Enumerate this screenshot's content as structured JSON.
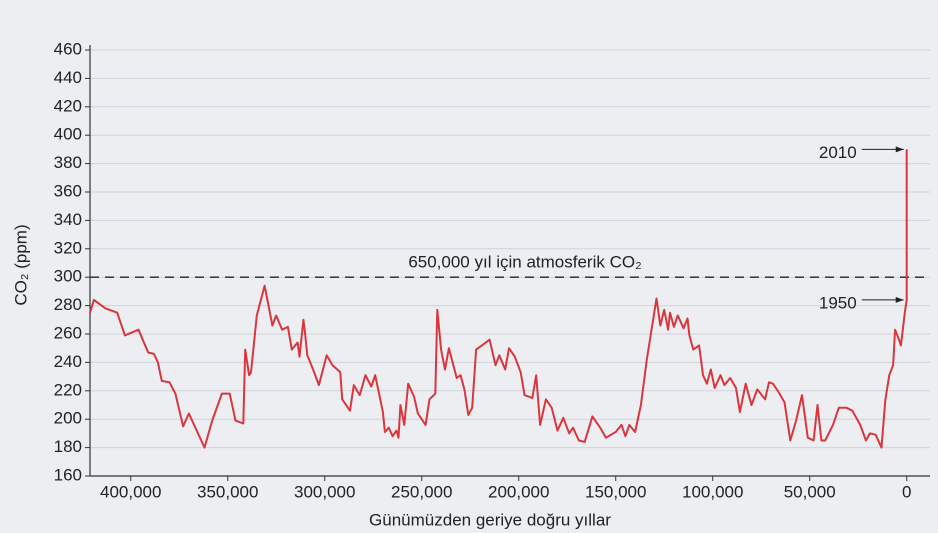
{
  "chart_data": {
    "type": "line",
    "y_label": "CO₂ (ppm)",
    "x_label": "Günümüzden geriye doğru yıllar",
    "xlim": [
      421000,
      -12000
    ],
    "ylim": [
      160,
      460
    ],
    "xticks": [
      {
        "value": 400000,
        "label": "400,000"
      },
      {
        "value": 350000,
        "label": "350,000"
      },
      {
        "value": 300000,
        "label": "300,000"
      },
      {
        "value": 250000,
        "label": "250,000"
      },
      {
        "value": 200000,
        "label": "200,000"
      },
      {
        "value": 150000,
        "label": "150,000"
      },
      {
        "value": 100000,
        "label": "100,000"
      },
      {
        "value": 50000,
        "label": "50,000"
      },
      0
    ],
    "yticks": [
      160,
      180,
      200,
      220,
      240,
      260,
      280,
      300,
      320,
      340,
      360,
      380,
      400,
      420,
      440,
      460
    ],
    "grid": true,
    "reference_line": {
      "y": 300,
      "label": "650,000 yıl için atmosferik CO₂"
    },
    "annotations": [
      {
        "text": "2010",
        "x": 0,
        "y": 390
      },
      {
        "text": "1950",
        "x": 0,
        "y": 284
      }
    ],
    "x": [
      421000,
      419000,
      413000,
      407000,
      403000,
      396000,
      391000,
      388000,
      386000,
      384000,
      380000,
      377000,
      373000,
      370000,
      366000,
      362000,
      358000,
      353000,
      349000,
      346000,
      342000,
      341000,
      339000,
      338000,
      335000,
      331000,
      327000,
      325000,
      322000,
      319000,
      317000,
      314000,
      313000,
      311000,
      310000,
      309000,
      306000,
      303000,
      299000,
      296000,
      292000,
      291000,
      287000,
      285000,
      282000,
      279000,
      276000,
      274000,
      270000,
      269000,
      267000,
      265000,
      263000,
      262000,
      261000,
      259000,
      257000,
      254000,
      252000,
      248000,
      246000,
      243000,
      242000,
      240000,
      238000,
      236000,
      232000,
      230000,
      228000,
      226000,
      224000,
      222000,
      219000,
      215000,
      212000,
      210000,
      207000,
      205000,
      202000,
      199000,
      197000,
      193000,
      191000,
      189000,
      186000,
      183000,
      180000,
      177000,
      174000,
      172000,
      169000,
      166000,
      162000,
      158000,
      155000,
      150000,
      147000,
      145000,
      143000,
      140000,
      137000,
      134000,
      129000,
      127000,
      125000,
      123000,
      122000,
      120000,
      118000,
      115000,
      113000,
      112000,
      110000,
      107000,
      105000,
      103000,
      101000,
      99000,
      96000,
      94000,
      91000,
      88000,
      86000,
      83000,
      80000,
      77000,
      73000,
      71000,
      69000,
      66000,
      63000,
      60000,
      57000,
      54000,
      51000,
      48000,
      46000,
      44000,
      42000,
      38000,
      35000,
      31000,
      28000,
      24000,
      21000,
      19000,
      16000,
      13000,
      11000,
      9000,
      7000,
      6000,
      4000,
      3000,
      2000,
      1000,
      0,
      0
    ],
    "series": [
      {
        "color": "#d9363e",
        "values": [
          275,
          284,
          278,
          275,
          259,
          263,
          247,
          246,
          240,
          227,
          226,
          218,
          195,
          204,
          192,
          180,
          199,
          218,
          218,
          199,
          197,
          249,
          231,
          233,
          273,
          294,
          266,
          273,
          263,
          265,
          249,
          254,
          244,
          270,
          259,
          245,
          235,
          224,
          245,
          238,
          233,
          214,
          206,
          224,
          217,
          231,
          223,
          231,
          205,
          191,
          194,
          188,
          192,
          187,
          210,
          196,
          225,
          216,
          204,
          196,
          214,
          218,
          277,
          249,
          235,
          250,
          229,
          231,
          221,
          203,
          208,
          249,
          252,
          256,
          238,
          245,
          235,
          250,
          244,
          233,
          217,
          215,
          231,
          196,
          214,
          208,
          192,
          201,
          190,
          194,
          185,
          184,
          202,
          194,
          187,
          191,
          196,
          188,
          196,
          191,
          210,
          242,
          285,
          266,
          277,
          263,
          275,
          265,
          273,
          264,
          271,
          259,
          249,
          252,
          231,
          225,
          235,
          222,
          231,
          224,
          229,
          222,
          205,
          225,
          210,
          221,
          214,
          226,
          225,
          219,
          212,
          185,
          199,
          217,
          187,
          185,
          210,
          185,
          185,
          196,
          208,
          208,
          206,
          196,
          185,
          190,
          189,
          180,
          214,
          231,
          238,
          263,
          256,
          252,
          263,
          275,
          284,
          390
        ]
      }
    ]
  }
}
